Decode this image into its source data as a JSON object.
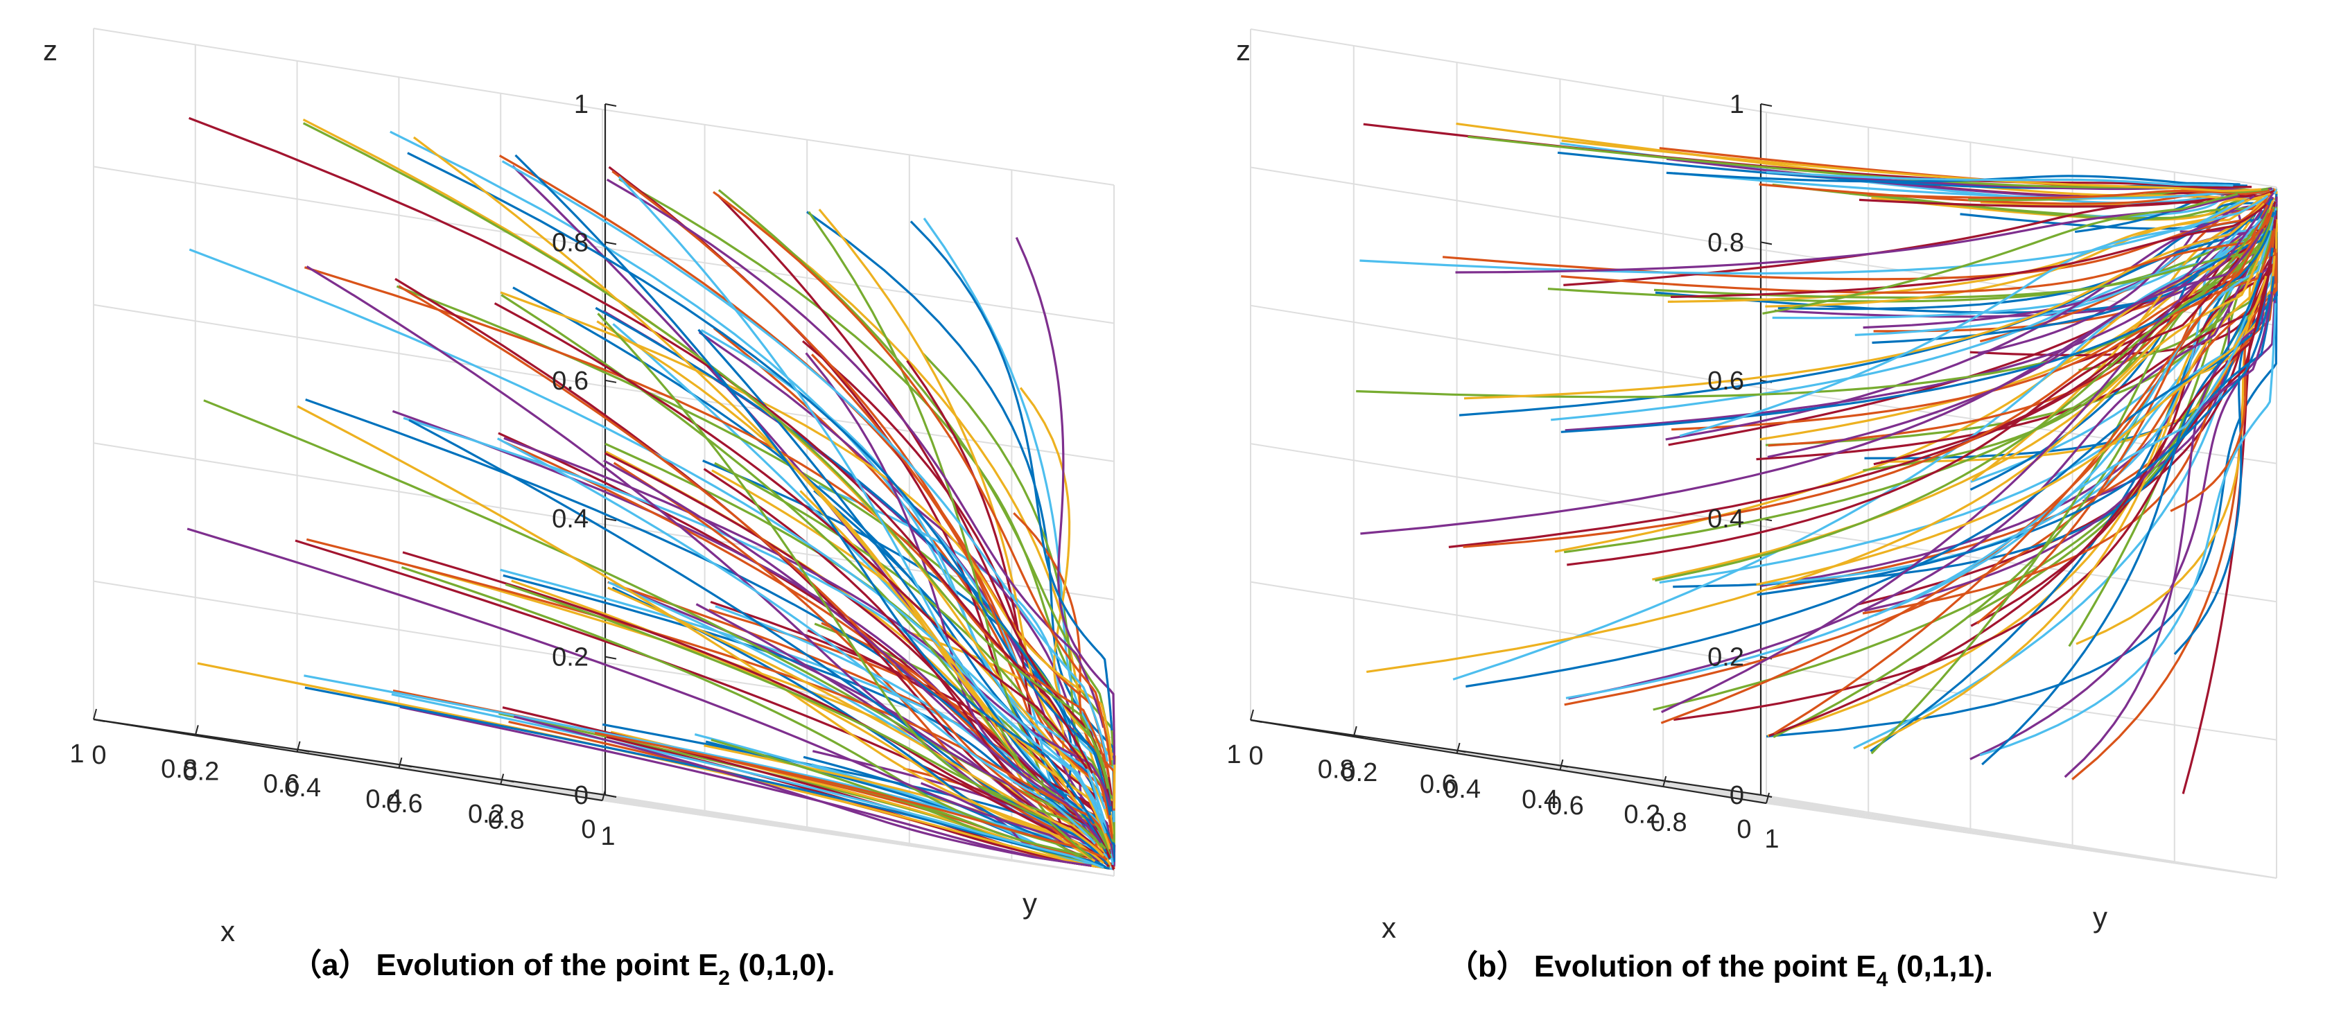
{
  "figure": {
    "panels": [
      {
        "id": "a",
        "caption_prefix": "（a）",
        "caption_main": "Evolution of the point E",
        "caption_sub": "2",
        "caption_suffix": " (0,1,0)."
      },
      {
        "id": "b",
        "caption_prefix": "（b）",
        "caption_main": "Evolution of the point E",
        "caption_sub": "4",
        "caption_suffix": " (0,1,1)."
      }
    ]
  },
  "chart_data": [
    {
      "type": "line",
      "subtype": "3d-trajectories",
      "title": "（a） Evolution of the point E2 (0,1,0).",
      "xlabel": "x",
      "ylabel": "y",
      "zlabel": "z",
      "xlim": [
        0,
        1
      ],
      "ylim": [
        0,
        1
      ],
      "zlim": [
        0,
        1
      ],
      "x_ticks": [
        "0",
        "0.2",
        "0.4",
        "0.6",
        "0.8",
        "1"
      ],
      "y_ticks": [
        "0",
        "0.2",
        "0.4",
        "0.6",
        "0.8",
        "1"
      ],
      "z_ticks": [
        "0",
        "0.2",
        "0.4",
        "0.6",
        "0.8",
        "1"
      ],
      "grid": true,
      "view": "3d-box",
      "equilibrium": {
        "x": 0,
        "y": 1,
        "z": 0
      },
      "start_x": [
        0,
        0.2,
        0.4,
        0.6,
        0.8
      ],
      "start_z": [
        0.1,
        0.3,
        0.5,
        0.7,
        0.9
      ],
      "num_trajectories": 125,
      "series_colors": [
        "#0072BD",
        "#D95319",
        "#EDB120",
        "#7E2F8E",
        "#77AC30",
        "#4DBEEE",
        "#A2142F"
      ]
    },
    {
      "type": "line",
      "subtype": "3d-trajectories",
      "title": "（b） Evolution of the point E4 (0,1,1).",
      "xlabel": "x",
      "ylabel": "y",
      "zlabel": "z",
      "xlim": [
        0,
        1
      ],
      "ylim": [
        0,
        1
      ],
      "zlim": [
        0,
        1
      ],
      "x_ticks": [
        "0",
        "0.2",
        "0.4",
        "0.6",
        "0.8",
        "1"
      ],
      "y_ticks": [
        "0",
        "0.2",
        "0.4",
        "0.6",
        "0.8",
        "1"
      ],
      "z_ticks": [
        "0",
        "0.2",
        "0.4",
        "0.6",
        "0.8",
        "1"
      ],
      "grid": true,
      "view": "3d-box",
      "equilibrium": {
        "x": 0,
        "y": 1,
        "z": 1
      },
      "start_x": [
        0,
        0.2,
        0.4,
        0.6,
        0.8
      ],
      "start_z": [
        0.1,
        0.3,
        0.5,
        0.7,
        0.9
      ],
      "num_trajectories": 125,
      "series_colors": [
        "#0072BD",
        "#D95319",
        "#EDB120",
        "#7E2F8E",
        "#77AC30",
        "#4DBEEE",
        "#A2142F"
      ]
    }
  ]
}
